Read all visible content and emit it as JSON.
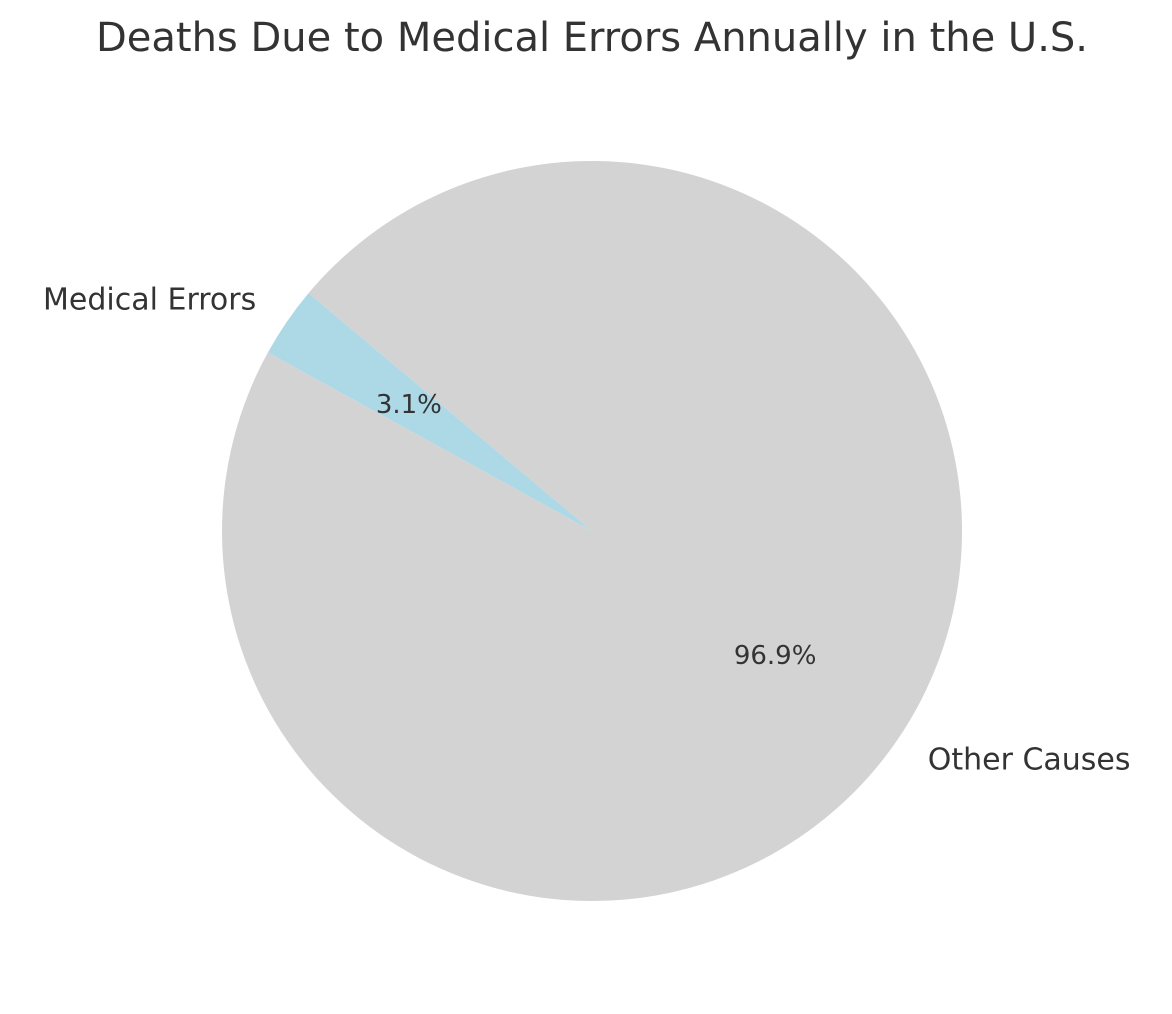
{
  "chart_data": {
    "type": "pie",
    "title": "Deaths Due to Medical Errors Annually in the U.S.",
    "categories": [
      "Medical Errors",
      "Other Causes"
    ],
    "values": [
      3.1,
      96.9
    ],
    "value_labels": [
      "3.1%",
      "96.9%"
    ],
    "colors": [
      "#add8e6",
      "#d3d3d3"
    ]
  }
}
